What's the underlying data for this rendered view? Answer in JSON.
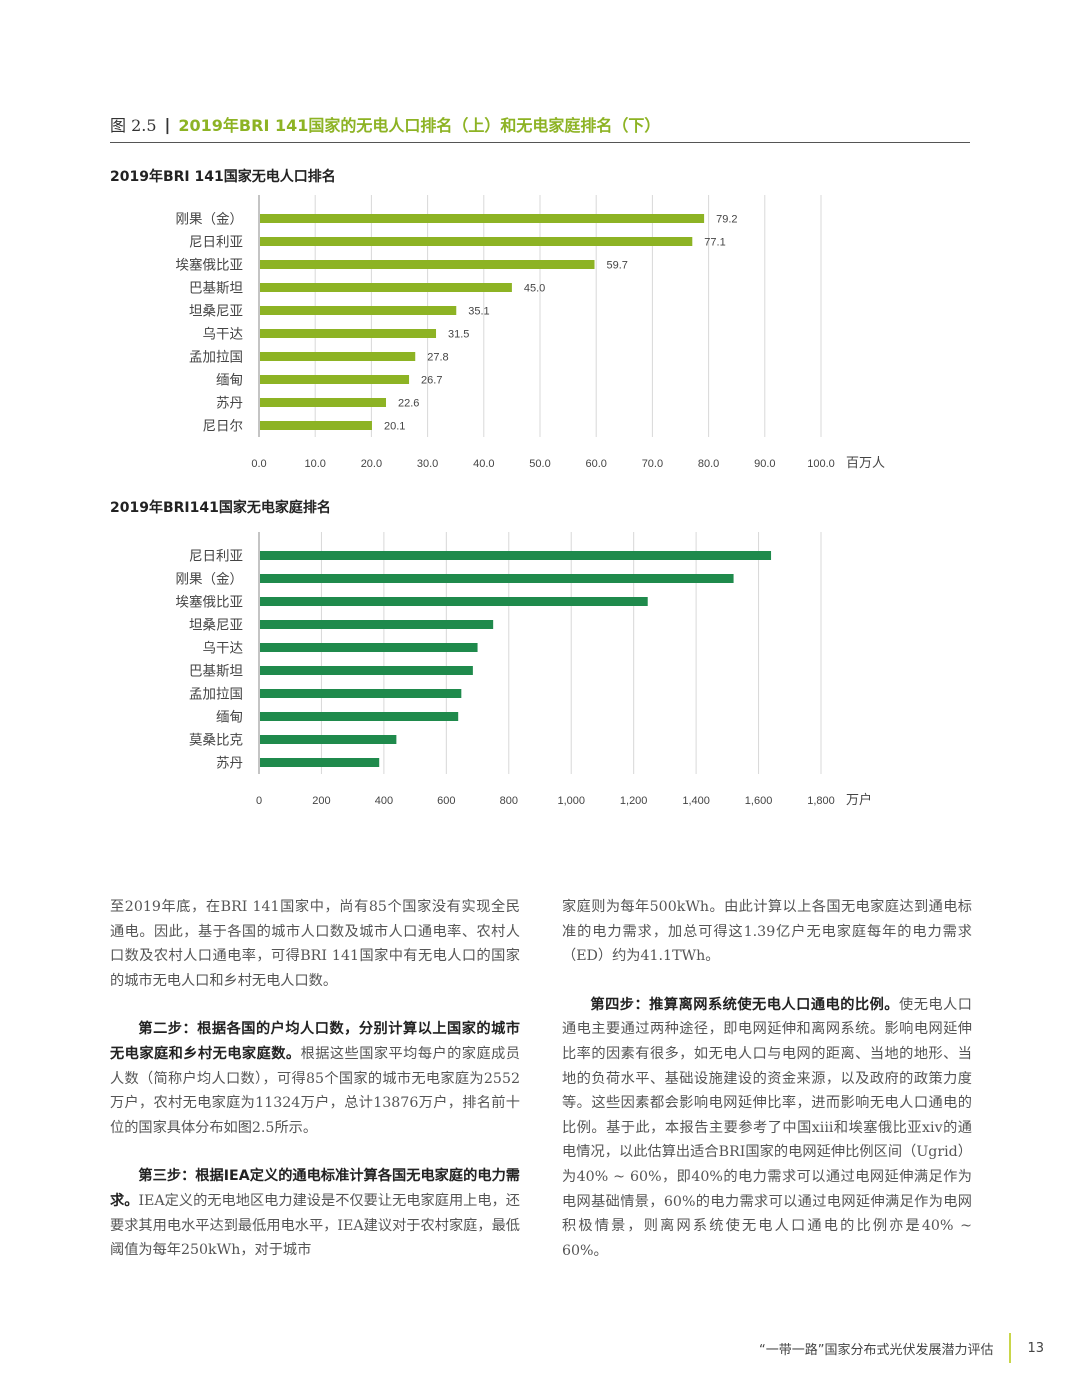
{
  "figure": {
    "number": "图 2.5",
    "separator": "|",
    "title": "2019年BRI 141国家的无电人口排名（上）和无电家庭排名（下）"
  },
  "chart_data": [
    {
      "type": "bar",
      "orientation": "horizontal",
      "title": "2019年BRI 141国家无电人口排名",
      "categories": [
        "刚果（金）",
        "尼日利亚",
        "埃塞俄比亚",
        "巴基斯坦",
        "坦桑尼亚",
        "乌干达",
        "孟加拉国",
        "缅甸",
        "苏丹",
        "尼日尔"
      ],
      "values": [
        79.2,
        77.1,
        59.7,
        45.0,
        35.1,
        31.5,
        27.8,
        26.7,
        22.6,
        20.1
      ],
      "value_labels": [
        "79.2",
        "77.1",
        "59.7",
        "45.0",
        "35.1",
        "31.5",
        "27.8",
        "26.7",
        "22.6",
        "20.1"
      ],
      "xlim": [
        0,
        100
      ],
      "ticks": [
        "0.0",
        "10.0",
        "20.0",
        "30.0",
        "40.0",
        "50.0",
        "60.0",
        "70.0",
        "80.0",
        "90.0",
        "100.0"
      ],
      "unit": "百万人",
      "color": "#8db324",
      "grid": true
    },
    {
      "type": "bar",
      "orientation": "horizontal",
      "title": "2019年BRI141国家无电家庭排名",
      "categories": [
        "尼日利亚",
        "刚果（金）",
        "埃塞俄比亚",
        "坦桑尼亚",
        "乌干达",
        "巴基斯坦",
        "孟加拉国",
        "缅甸",
        "莫桑比克",
        "苏丹"
      ],
      "values": [
        1640,
        1520,
        1245,
        750,
        700,
        685,
        648,
        638,
        440,
        385
      ],
      "xlim": [
        0,
        1800
      ],
      "ticks": [
        "0",
        "200",
        "400",
        "600",
        "800",
        "1,000",
        "1,200",
        "1,400",
        "1,600",
        "1,800"
      ],
      "unit": "万户",
      "color": "#1f8a4c",
      "grid": true
    }
  ],
  "text": {
    "left": [
      {
        "bold": "",
        "body": "至2019年底，在BRI 141国家中，尚有85个国家没有实现全民通电。因此，基于各国的城市人口数及城市人口通电率、农村人口数及农村人口通电率，可得BRI 141国家中有无电人口的国家的城市无电人口和乡村无电人口数。"
      },
      {
        "bold": "第二步：根据各国的户均人口数，分别计算以上国家的城市无电家庭和乡村无电家庭数。",
        "body": "根据这些国家平均每户的家庭成员人数（简称户均人口数），可得85个国家的城市无电家庭为2552万户，农村无电家庭为11324万户，总计13876万户，排名前十位的国家具体分布如图2.5所示。"
      },
      {
        "bold": "第三步：根据IEA定义的通电标准计算各国无电家庭的电力需求。",
        "body": "IEA定义的无电地区电力建设是不仅要让无电家庭用上电，还要求其用电水平达到最低用电水平，IEA建议对于农村家庭，最低阈值为每年250kWh，对于城市"
      }
    ],
    "right": [
      {
        "bold": "",
        "body": "家庭则为每年500kWh。由此计算以上各国无电家庭达到通电标准的电力需求，加总可得这1.39亿户无电家庭每年的电力需求（ED）约为41.1TWh。"
      },
      {
        "bold": "第四步：推算离网系统使无电人口通电的比例。",
        "body": "使无电人口通电主要通过两种途径，即电网延伸和离网系统。影响电网延伸比率的因素有很多，如无电人口与电网的距离、当地的地形、当地的负荷水平、基础设施建设的资金来源，以及政府的政策力度等。这些因素都会影响电网延伸比率，进而影响无电人口通电的比例。基于此，本报告主要参考了中国xiii和埃塞俄比亚xiv的通电情况，以此估算出适合BRI国家的电网延伸比例区间（Ugrid）为40% ~ 60%，即40%的电力需求可以通过电网延伸满足作为电网基础情景，60%的电力需求可以通过电网延伸满足作为电网积极情景，则离网系统使无电人口通电的比例亦是40% ~ 60%。"
      }
    ]
  },
  "footer": {
    "text": "“一带一路”国家分布式光伏发展潜力评估",
    "page": "13"
  }
}
